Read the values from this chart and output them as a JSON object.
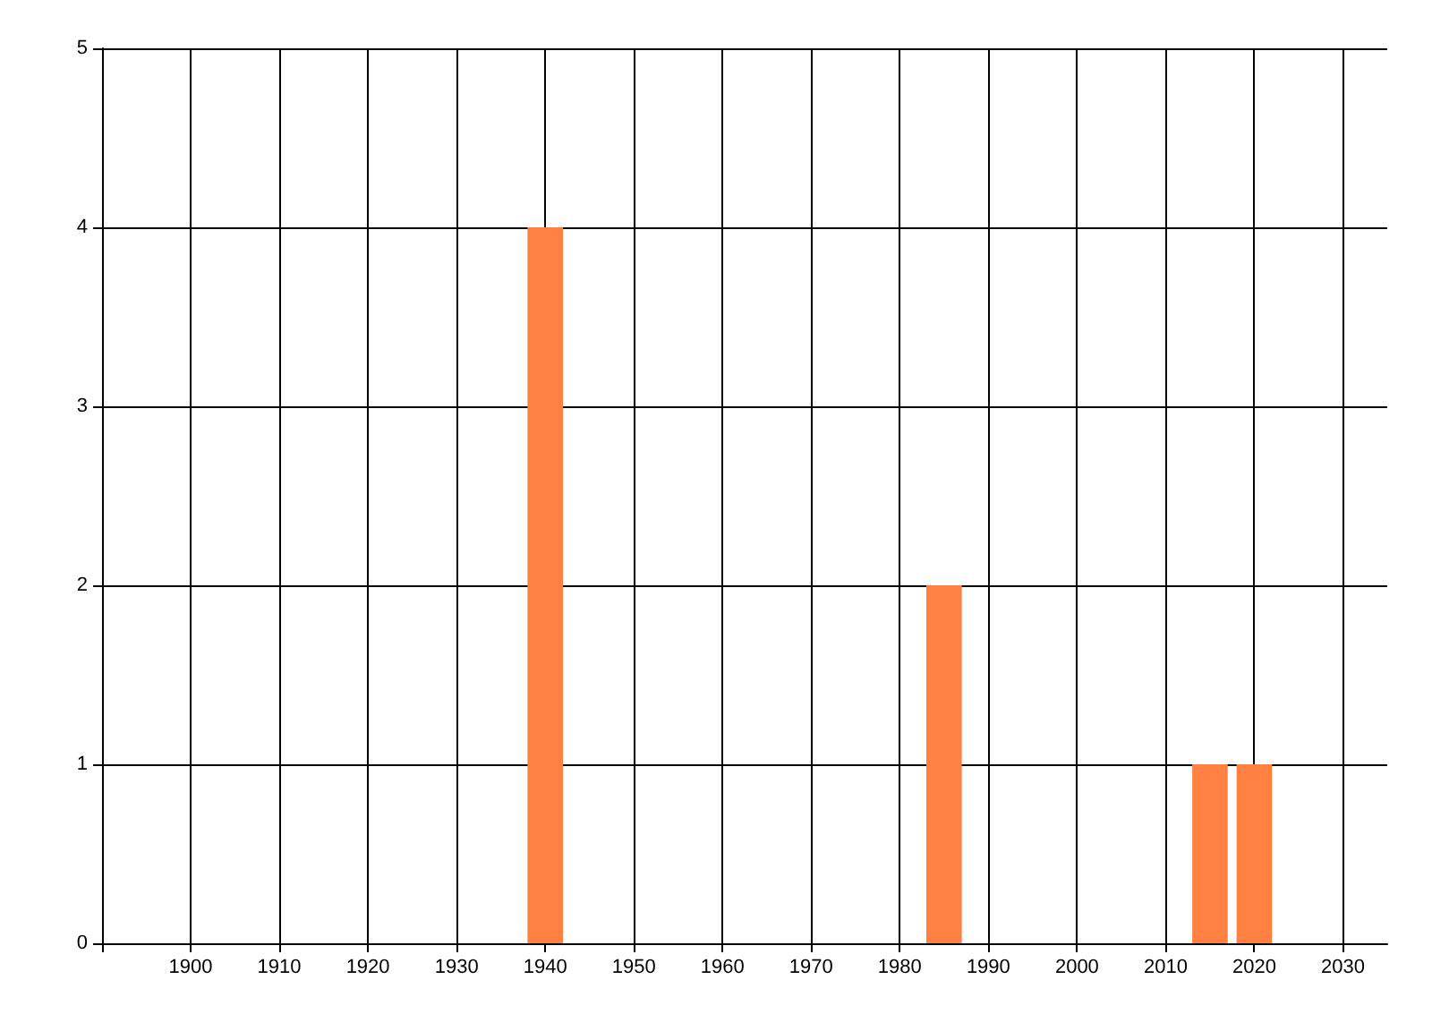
{
  "chart_data": {
    "type": "bar",
    "x": [
      1940,
      1985,
      2015,
      2020
    ],
    "values": [
      4,
      2,
      1,
      1
    ],
    "color": "#ff8040",
    "xlim": [
      1890,
      2035
    ],
    "xticks": [
      {
        "value": 1890,
        "label": null
      },
      1900,
      1910,
      1920,
      1930,
      1940,
      1950,
      1960,
      1970,
      1980,
      1990,
      2000,
      2010,
      2020,
      2030
    ],
    "ylim": [
      0,
      5
    ],
    "yticks": [
      0,
      1,
      2,
      3,
      4,
      5
    ],
    "grid": true
  }
}
